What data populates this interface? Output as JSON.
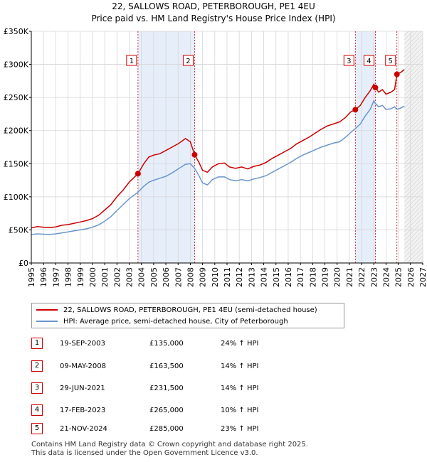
{
  "chart_data": {
    "type": "line",
    "title": "22, SALLOWS ROAD, PETERBOROUGH, PE1 4EU",
    "subtitle": "Price paid vs. HM Land Registry's House Price Index (HPI)",
    "xlim": [
      1995,
      2027
    ],
    "ylim": [
      0,
      350000
    ],
    "x_ticks": [
      "1995",
      "1996",
      "1997",
      "1998",
      "1999",
      "2000",
      "2001",
      "2002",
      "2003",
      "2004",
      "2005",
      "2006",
      "2007",
      "2008",
      "2009",
      "2010",
      "2011",
      "2012",
      "2013",
      "2014",
      "2015",
      "2016",
      "2017",
      "2018",
      "2019",
      "2020",
      "2021",
      "2022",
      "2023",
      "2024",
      "2025",
      "2026",
      "2027"
    ],
    "y_ticks": [
      {
        "value": 0,
        "label": "£0"
      },
      {
        "value": 50000,
        "label": "£50K"
      },
      {
        "value": 100000,
        "label": "£100K"
      },
      {
        "value": 150000,
        "label": "£150K"
      },
      {
        "value": 200000,
        "label": "£200K"
      },
      {
        "value": 250000,
        "label": "£250K"
      },
      {
        "value": 300000,
        "label": "£300K"
      },
      {
        "value": 350000,
        "label": "£350K"
      }
    ],
    "grid": true,
    "legend_position": "below",
    "series": [
      {
        "name": "22, SALLOWS ROAD, PETERBOROUGH, PE1 4EU (semi-detached house)",
        "color": "#cc0000",
        "points": [
          [
            1995.0,
            53000
          ],
          [
            1995.5,
            55000
          ],
          [
            1996.0,
            54000
          ],
          [
            1996.5,
            53500
          ],
          [
            1997.0,
            54500
          ],
          [
            1997.5,
            57000
          ],
          [
            1998.0,
            58000
          ],
          [
            1998.5,
            60000
          ],
          [
            1999.0,
            62000
          ],
          [
            1999.5,
            64000
          ],
          [
            2000.0,
            67000
          ],
          [
            2000.5,
            72000
          ],
          [
            2001.0,
            80000
          ],
          [
            2001.5,
            88000
          ],
          [
            2002.0,
            100000
          ],
          [
            2002.5,
            110000
          ],
          [
            2003.0,
            122000
          ],
          [
            2003.72,
            135000
          ],
          [
            2004.2,
            150000
          ],
          [
            2004.6,
            160000
          ],
          [
            2005.0,
            163000
          ],
          [
            2005.5,
            165000
          ],
          [
            2006.0,
            170000
          ],
          [
            2006.5,
            175000
          ],
          [
            2007.0,
            180000
          ],
          [
            2007.6,
            188000
          ],
          [
            2008.0,
            183000
          ],
          [
            2008.35,
            163500
          ],
          [
            2008.7,
            152000
          ],
          [
            2009.0,
            140000
          ],
          [
            2009.4,
            137000
          ],
          [
            2009.8,
            145000
          ],
          [
            2010.3,
            150000
          ],
          [
            2010.8,
            151000
          ],
          [
            2011.2,
            145000
          ],
          [
            2011.7,
            143000
          ],
          [
            2012.2,
            145000
          ],
          [
            2012.7,
            142000
          ],
          [
            2013.2,
            146000
          ],
          [
            2013.7,
            148000
          ],
          [
            2014.2,
            152000
          ],
          [
            2014.7,
            158000
          ],
          [
            2015.2,
            163000
          ],
          [
            2015.7,
            168000
          ],
          [
            2016.2,
            173000
          ],
          [
            2016.7,
            180000
          ],
          [
            2017.2,
            185000
          ],
          [
            2017.7,
            190000
          ],
          [
            2018.2,
            196000
          ],
          [
            2018.7,
            202000
          ],
          [
            2019.2,
            207000
          ],
          [
            2019.7,
            210000
          ],
          [
            2020.2,
            213000
          ],
          [
            2020.7,
            220000
          ],
          [
            2021.1,
            228000
          ],
          [
            2021.49,
            231500
          ],
          [
            2021.9,
            238000
          ],
          [
            2022.3,
            250000
          ],
          [
            2022.7,
            260000
          ],
          [
            2023.0,
            270000
          ],
          [
            2023.13,
            265000
          ],
          [
            2023.4,
            258000
          ],
          [
            2023.7,
            262000
          ],
          [
            2024.0,
            255000
          ],
          [
            2024.4,
            258000
          ],
          [
            2024.7,
            262000
          ],
          [
            2024.89,
            285000
          ],
          [
            2025.2,
            288000
          ],
          [
            2025.5,
            292000
          ]
        ]
      },
      {
        "name": "HPI: Average price, semi-detached house, City of Peterborough",
        "color": "#6a96cc",
        "points": [
          [
            1995.0,
            43000
          ],
          [
            1995.5,
            44000
          ],
          [
            1996.0,
            43500
          ],
          [
            1996.5,
            43000
          ],
          [
            1997.0,
            44000
          ],
          [
            1997.5,
            45500
          ],
          [
            1998.0,
            47000
          ],
          [
            1998.5,
            48500
          ],
          [
            1999.0,
            50000
          ],
          [
            1999.5,
            51500
          ],
          [
            2000.0,
            54000
          ],
          [
            2000.5,
            57500
          ],
          [
            2001.0,
            63000
          ],
          [
            2001.5,
            70000
          ],
          [
            2002.0,
            79000
          ],
          [
            2002.5,
            88000
          ],
          [
            2003.0,
            97000
          ],
          [
            2003.72,
            107000
          ],
          [
            2004.2,
            116000
          ],
          [
            2004.6,
            122000
          ],
          [
            2005.0,
            125000
          ],
          [
            2005.5,
            128000
          ],
          [
            2006.0,
            131000
          ],
          [
            2006.5,
            136000
          ],
          [
            2007.0,
            142000
          ],
          [
            2007.6,
            149000
          ],
          [
            2008.0,
            150000
          ],
          [
            2008.35,
            143000
          ],
          [
            2008.7,
            132000
          ],
          [
            2009.0,
            121000
          ],
          [
            2009.4,
            118000
          ],
          [
            2009.8,
            126000
          ],
          [
            2010.3,
            130000
          ],
          [
            2010.8,
            130000
          ],
          [
            2011.2,
            126000
          ],
          [
            2011.7,
            124000
          ],
          [
            2012.2,
            126000
          ],
          [
            2012.7,
            124000
          ],
          [
            2013.2,
            127000
          ],
          [
            2013.7,
            129000
          ],
          [
            2014.2,
            132000
          ],
          [
            2014.7,
            137000
          ],
          [
            2015.2,
            142000
          ],
          [
            2015.7,
            147000
          ],
          [
            2016.2,
            152000
          ],
          [
            2016.7,
            158000
          ],
          [
            2017.2,
            163000
          ],
          [
            2017.7,
            167000
          ],
          [
            2018.2,
            171000
          ],
          [
            2018.7,
            175000
          ],
          [
            2019.2,
            178000
          ],
          [
            2019.7,
            181000
          ],
          [
            2020.2,
            183000
          ],
          [
            2020.7,
            190000
          ],
          [
            2021.1,
            197000
          ],
          [
            2021.49,
            203000
          ],
          [
            2021.9,
            210000
          ],
          [
            2022.3,
            222000
          ],
          [
            2022.7,
            232000
          ],
          [
            2023.0,
            245000
          ],
          [
            2023.13,
            241000
          ],
          [
            2023.4,
            236000
          ],
          [
            2023.7,
            238000
          ],
          [
            2024.0,
            232000
          ],
          [
            2024.4,
            233000
          ],
          [
            2024.7,
            236000
          ],
          [
            2024.89,
            232000
          ],
          [
            2025.2,
            234000
          ],
          [
            2025.5,
            237000
          ]
        ]
      }
    ],
    "sales": [
      {
        "num": "1",
        "date": "19-SEP-2003",
        "price": "£135,000",
        "hpi": "24% ↑ HPI",
        "x": 2003.72,
        "y": 135000
      },
      {
        "num": "2",
        "date": "09-MAY-2008",
        "price": "£163,500",
        "hpi": "14% ↑ HPI",
        "x": 2008.35,
        "y": 163500
      },
      {
        "num": "3",
        "date": "29-JUN-2021",
        "price": "£231,500",
        "hpi": "14% ↑ HPI",
        "x": 2021.49,
        "y": 231500
      },
      {
        "num": "4",
        "date": "17-FEB-2023",
        "price": "£265,000",
        "hpi": "10% ↑ HPI",
        "x": 2023.13,
        "y": 265000
      },
      {
        "num": "5",
        "date": "21-NOV-2024",
        "price": "£285,000",
        "hpi": "23% ↑ HPI",
        "x": 2024.89,
        "y": 285000
      }
    ],
    "shaded_periods": [
      [
        2003.72,
        2008.35
      ],
      [
        2021.49,
        2023.13
      ]
    ],
    "forecast_start": 2025.5
  },
  "footer": {
    "line1": "Contains HM Land Registry data © Crown copyright and database right 2025.",
    "line2": "This data is licensed under the Open Government Licence v3.0."
  }
}
